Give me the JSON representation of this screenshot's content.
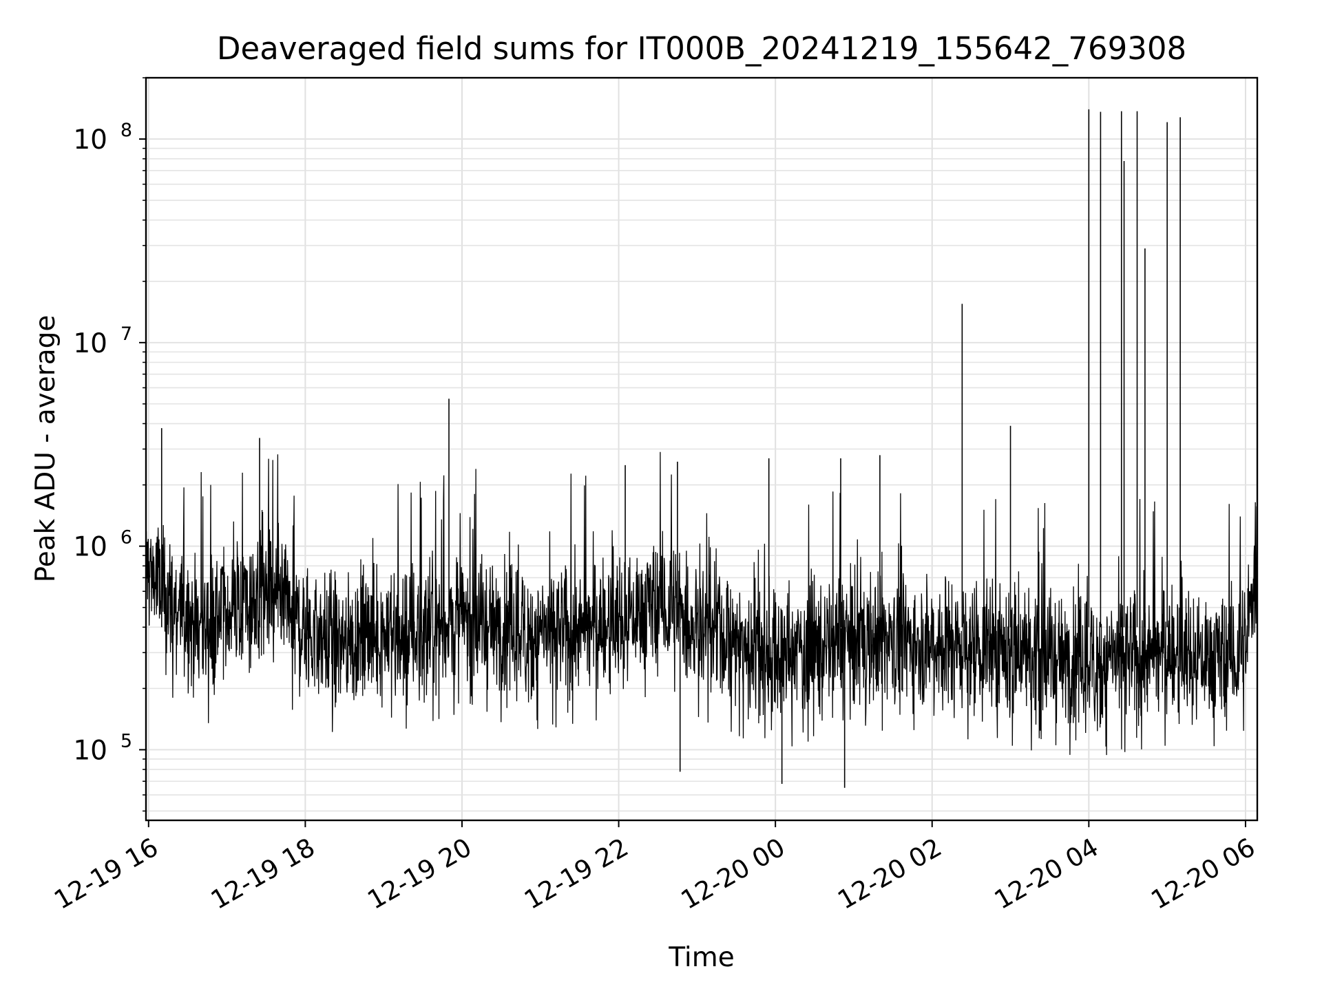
{
  "chart_data": {
    "type": "line",
    "title": "Deaveraged field sums for IT000B_20241219_155642_769308",
    "xlabel": "Time",
    "ylabel": "Peak ADU - average",
    "yscale": "log",
    "grid": true,
    "legend": "none",
    "ylim": [
      45000,
      200000000
    ],
    "xlim": [
      "2024-12-19 15:58",
      "2024-12-20 06:09"
    ],
    "x_ticks": [
      {
        "t": "2024-12-19 16:00",
        "label": "12-19 16"
      },
      {
        "t": "2024-12-19 18:00",
        "label": "12-19 18"
      },
      {
        "t": "2024-12-19 20:00",
        "label": "12-19 20"
      },
      {
        "t": "2024-12-19 22:00",
        "label": "12-19 22"
      },
      {
        "t": "2024-12-20 00:00",
        "label": "12-20 00"
      },
      {
        "t": "2024-12-20 02:00",
        "label": "12-20 02"
      },
      {
        "t": "2024-12-20 04:00",
        "label": "12-20 04"
      },
      {
        "t": "2024-12-20 06:00",
        "label": "12-20 06"
      }
    ],
    "y_ticks": [
      {
        "value": 100000,
        "base": "10",
        "exp": "5"
      },
      {
        "value": 1000000,
        "base": "10",
        "exp": "6"
      },
      {
        "value": 10000000,
        "base": "10",
        "exp": "7"
      },
      {
        "value": 100000000,
        "base": "10",
        "exp": "8"
      }
    ],
    "series": [
      {
        "color": "#000000",
        "x": [
          "2024-12-19 15:58",
          "2024-12-19 16:05",
          "2024-12-19 16:10",
          "2024-12-19 16:15",
          "2024-12-19 16:20",
          "2024-12-19 16:25",
          "2024-12-19 16:30",
          "2024-12-19 16:35",
          "2024-12-19 16:40",
          "2024-12-19 16:45",
          "2024-12-19 16:50",
          "2024-12-19 16:55",
          "2024-12-19 17:00",
          "2024-12-19 17:10",
          "2024-12-19 17:20",
          "2024-12-19 17:30",
          "2024-12-19 17:40",
          "2024-12-19 17:50",
          "2024-12-19 18:00",
          "2024-12-19 18:10",
          "2024-12-19 18:20",
          "2024-12-19 18:30",
          "2024-12-19 18:40",
          "2024-12-19 18:50",
          "2024-12-19 19:00",
          "2024-12-19 19:10",
          "2024-12-19 19:20",
          "2024-12-19 19:30",
          "2024-12-19 19:40",
          "2024-12-19 19:50",
          "2024-12-19 20:00",
          "2024-12-19 20:15",
          "2024-12-19 20:30",
          "2024-12-19 20:45",
          "2024-12-19 21:00",
          "2024-12-19 21:15",
          "2024-12-19 21:30",
          "2024-12-19 21:45",
          "2024-12-19 22:00",
          "2024-12-19 22:10",
          "2024-12-19 22:20",
          "2024-12-19 22:30",
          "2024-12-19 22:40",
          "2024-12-19 22:50",
          "2024-12-19 23:00",
          "2024-12-19 23:15",
          "2024-12-19 23:30",
          "2024-12-19 23:45",
          "2024-12-20 00:00",
          "2024-12-20 00:15",
          "2024-12-20 00:30",
          "2024-12-20 00:45",
          "2024-12-20 01:00",
          "2024-12-20 01:15",
          "2024-12-20 01:30",
          "2024-12-20 01:45",
          "2024-12-20 02:00",
          "2024-12-20 02:15",
          "2024-12-20 02:30",
          "2024-12-20 02:45",
          "2024-12-20 03:00",
          "2024-12-20 03:15",
          "2024-12-20 03:30",
          "2024-12-20 03:45",
          "2024-12-20 04:00",
          "2024-12-20 04:15",
          "2024-12-20 04:30",
          "2024-12-20 04:45",
          "2024-12-20 05:00",
          "2024-12-20 05:15",
          "2024-12-20 05:30",
          "2024-12-20 05:45",
          "2024-12-20 06:00",
          "2024-12-20 06:09"
        ],
        "y": [
          800000,
          700000,
          600000,
          550000,
          500000,
          480000,
          450000,
          420000,
          400000,
          420000,
          430000,
          460000,
          480000,
          500000,
          520000,
          550000,
          500000,
          450000,
          380000,
          360000,
          350000,
          340000,
          360000,
          370000,
          380000,
          370000,
          360000,
          380000,
          400000,
          420000,
          430000,
          410000,
          390000,
          370000,
          360000,
          370000,
          390000,
          400000,
          420000,
          450000,
          480000,
          500000,
          470000,
          440000,
          400000,
          380000,
          340000,
          300000,
          280000,
          300000,
          320000,
          330000,
          340000,
          350000,
          360000,
          350000,
          340000,
          330000,
          320000,
          310000,
          300000,
          290000,
          280000,
          270000,
          260000,
          270000,
          280000,
          290000,
          300000,
          290000,
          280000,
          270000,
          300000,
          900000
        ]
      }
    ],
    "spikes": [
      {
        "x": "2024-12-19 16:10",
        "y": 3800000
      },
      {
        "x": "2024-12-19 17:25",
        "y": 3400000
      },
      {
        "x": "2024-12-19 19:50",
        "y": 5300000
      },
      {
        "x": "2024-12-19 22:05",
        "y": 2500000
      },
      {
        "x": "2024-12-19 22:45",
        "y": 2600000
      },
      {
        "x": "2024-12-19 22:47",
        "y": 78000
      },
      {
        "x": "2024-12-19 23:55",
        "y": 2700000
      },
      {
        "x": "2024-12-20 00:05",
        "y": 68000
      },
      {
        "x": "2024-12-20 00:50",
        "y": 2700000
      },
      {
        "x": "2024-12-20 00:53",
        "y": 65000
      },
      {
        "x": "2024-12-20 01:20",
        "y": 2800000
      },
      {
        "x": "2024-12-20 02:23",
        "y": 15500000
      },
      {
        "x": "2024-12-20 03:00",
        "y": 3900000
      },
      {
        "x": "2024-12-20 04:00",
        "y": 140000000
      },
      {
        "x": "2024-12-20 04:09",
        "y": 136000000
      },
      {
        "x": "2024-12-20 04:25",
        "y": 137000000
      },
      {
        "x": "2024-12-20 04:27",
        "y": 78000000
      },
      {
        "x": "2024-12-20 04:37",
        "y": 137000000
      },
      {
        "x": "2024-12-20 04:43",
        "y": 29000000
      },
      {
        "x": "2024-12-20 05:00",
        "y": 121000000
      },
      {
        "x": "2024-12-20 05:10",
        "y": 128000000
      }
    ]
  }
}
